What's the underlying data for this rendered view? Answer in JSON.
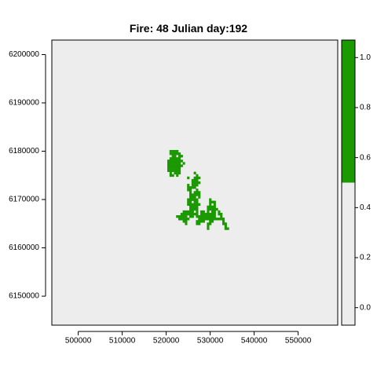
{
  "chart_data": {
    "type": "heatmap",
    "title": "Fire: 48    Julian day:192",
    "xlabel": "",
    "ylabel": "",
    "xlim": [
      494000,
      559000
    ],
    "ylim": [
      6144000,
      6203000
    ],
    "x_ticks": [
      500000,
      510000,
      520000,
      530000,
      540000,
      550000
    ],
    "y_ticks": [
      6150000,
      6160000,
      6170000,
      6180000,
      6190000,
      6200000
    ],
    "x_tick_labels": [
      "500000",
      "510000",
      "520000",
      "530000",
      "540000",
      "550000"
    ],
    "y_tick_labels": [
      "6150000",
      "6160000",
      "6170000",
      "6180000",
      "6190000",
      "6200000"
    ],
    "grid": false,
    "colors": {
      "background": "#ededed",
      "burned": "#1a9900"
    },
    "colorbar": {
      "range": [
        -0.07,
        1.07
      ],
      "threshold": 0.5,
      "ticks": [
        0.0,
        0.2,
        0.4,
        0.6,
        0.8,
        1.0
      ],
      "tick_labels": [
        "0.0",
        "0.2",
        "0.4",
        "0.6",
        "0.8",
        "1.0"
      ]
    },
    "cell_size": 500,
    "burned_cells": [
      [
        521000,
        6180000
      ],
      [
        521500,
        6180000
      ],
      [
        522000,
        6180000
      ],
      [
        522500,
        6180000
      ],
      [
        521000,
        6179500
      ],
      [
        521500,
        6179500
      ],
      [
        522000,
        6179500
      ],
      [
        522500,
        6179500
      ],
      [
        523000,
        6179500
      ],
      [
        521500,
        6179000
      ],
      [
        522000,
        6179000
      ],
      [
        523000,
        6179000
      ],
      [
        523500,
        6179000
      ],
      [
        521000,
        6178500
      ],
      [
        521500,
        6178500
      ],
      [
        522000,
        6178500
      ],
      [
        522500,
        6178500
      ],
      [
        523000,
        6178500
      ],
      [
        520500,
        6178000
      ],
      [
        521000,
        6178000
      ],
      [
        521500,
        6178000
      ],
      [
        522000,
        6178000
      ],
      [
        522500,
        6178000
      ],
      [
        523000,
        6178000
      ],
      [
        523500,
        6178000
      ],
      [
        520500,
        6177500
      ],
      [
        521000,
        6177500
      ],
      [
        521500,
        6177500
      ],
      [
        522000,
        6177500
      ],
      [
        522500,
        6177500
      ],
      [
        523000,
        6177500
      ],
      [
        524000,
        6177500
      ],
      [
        520500,
        6177000
      ],
      [
        521000,
        6177000
      ],
      [
        521500,
        6177000
      ],
      [
        522000,
        6177000
      ],
      [
        522500,
        6177000
      ],
      [
        523000,
        6177000
      ],
      [
        523500,
        6177000
      ],
      [
        520500,
        6176500
      ],
      [
        521000,
        6176500
      ],
      [
        521500,
        6176500
      ],
      [
        522000,
        6176500
      ],
      [
        522500,
        6176500
      ],
      [
        523000,
        6176500
      ],
      [
        520500,
        6176000
      ],
      [
        521000,
        6176000
      ],
      [
        521500,
        6176000
      ],
      [
        522000,
        6176000
      ],
      [
        522500,
        6176000
      ],
      [
        523000,
        6176000
      ],
      [
        521000,
        6175500
      ],
      [
        522000,
        6175500
      ],
      [
        522500,
        6175500
      ],
      [
        523000,
        6175500
      ],
      [
        521000,
        6175000
      ],
      [
        521500,
        6175000
      ],
      [
        522500,
        6175000
      ],
      [
        526500,
        6175500
      ],
      [
        527000,
        6175000
      ],
      [
        526500,
        6174500
      ],
      [
        527000,
        6174500
      ],
      [
        527500,
        6174500
      ],
      [
        525000,
        6174500
      ],
      [
        526000,
        6174000
      ],
      [
        526500,
        6174000
      ],
      [
        527000,
        6174000
      ],
      [
        526000,
        6173500
      ],
      [
        526500,
        6173500
      ],
      [
        527000,
        6173500
      ],
      [
        527500,
        6173500
      ],
      [
        525000,
        6173000
      ],
      [
        526000,
        6173000
      ],
      [
        526500,
        6173000
      ],
      [
        527000,
        6173000
      ],
      [
        525000,
        6172500
      ],
      [
        525500,
        6172500
      ],
      [
        526000,
        6172500
      ],
      [
        526500,
        6172500
      ],
      [
        525000,
        6172000
      ],
      [
        525500,
        6172000
      ],
      [
        527000,
        6172000
      ],
      [
        525500,
        6171500
      ],
      [
        526500,
        6171500
      ],
      [
        527000,
        6171500
      ],
      [
        527500,
        6171500
      ],
      [
        525500,
        6171000
      ],
      [
        526000,
        6171000
      ],
      [
        526500,
        6171000
      ],
      [
        527000,
        6171000
      ],
      [
        527500,
        6171000
      ],
      [
        525500,
        6170500
      ],
      [
        526000,
        6170500
      ],
      [
        526500,
        6170500
      ],
      [
        527500,
        6170500
      ],
      [
        525000,
        6170000
      ],
      [
        525500,
        6170000
      ],
      [
        526000,
        6170000
      ],
      [
        526500,
        6170000
      ],
      [
        527000,
        6170000
      ],
      [
        530000,
        6170000
      ],
      [
        525000,
        6169500
      ],
      [
        525500,
        6169500
      ],
      [
        526500,
        6169500
      ],
      [
        527000,
        6169500
      ],
      [
        530000,
        6169500
      ],
      [
        530500,
        6169500
      ],
      [
        531000,
        6169500
      ],
      [
        525000,
        6169000
      ],
      [
        525500,
        6169000
      ],
      [
        526000,
        6169000
      ],
      [
        526500,
        6169000
      ],
      [
        527000,
        6169000
      ],
      [
        527500,
        6169000
      ],
      [
        530000,
        6169000
      ],
      [
        531000,
        6169000
      ],
      [
        525500,
        6168500
      ],
      [
        526000,
        6168500
      ],
      [
        526500,
        6168500
      ],
      [
        527000,
        6168500
      ],
      [
        529500,
        6168500
      ],
      [
        530000,
        6168500
      ],
      [
        530500,
        6168500
      ],
      [
        531000,
        6168500
      ],
      [
        525500,
        6168000
      ],
      [
        526000,
        6168000
      ],
      [
        526500,
        6168000
      ],
      [
        527000,
        6168000
      ],
      [
        529500,
        6168000
      ],
      [
        530000,
        6168000
      ],
      [
        530500,
        6168000
      ],
      [
        531000,
        6168000
      ],
      [
        531500,
        6168000
      ],
      [
        524000,
        6167500
      ],
      [
        524500,
        6167500
      ],
      [
        525000,
        6167500
      ],
      [
        525500,
        6167500
      ],
      [
        526000,
        6167500
      ],
      [
        527000,
        6167500
      ],
      [
        528000,
        6167500
      ],
      [
        528500,
        6167500
      ],
      [
        529500,
        6167500
      ],
      [
        530500,
        6167500
      ],
      [
        531000,
        6167500
      ],
      [
        532000,
        6167500
      ],
      [
        523500,
        6167000
      ],
      [
        524000,
        6167000
      ],
      [
        524500,
        6167000
      ],
      [
        525000,
        6167000
      ],
      [
        525500,
        6167000
      ],
      [
        526000,
        6167000
      ],
      [
        526500,
        6167000
      ],
      [
        527000,
        6167000
      ],
      [
        528000,
        6167000
      ],
      [
        528500,
        6167000
      ],
      [
        529000,
        6167000
      ],
      [
        529500,
        6167000
      ],
      [
        530000,
        6167000
      ],
      [
        530500,
        6167000
      ],
      [
        531000,
        6167000
      ],
      [
        532000,
        6167000
      ],
      [
        532500,
        6167000
      ],
      [
        522500,
        6166500
      ],
      [
        523000,
        6166500
      ],
      [
        523500,
        6166500
      ],
      [
        524000,
        6166500
      ],
      [
        524500,
        6166500
      ],
      [
        525500,
        6166500
      ],
      [
        526000,
        6166500
      ],
      [
        527000,
        6166500
      ],
      [
        527500,
        6166500
      ],
      [
        528000,
        6166500
      ],
      [
        528500,
        6166500
      ],
      [
        529000,
        6166500
      ],
      [
        529500,
        6166500
      ],
      [
        530000,
        6166500
      ],
      [
        530500,
        6166500
      ],
      [
        531000,
        6166500
      ],
      [
        532500,
        6166500
      ],
      [
        523000,
        6166000
      ],
      [
        523500,
        6166000
      ],
      [
        524000,
        6166000
      ],
      [
        524500,
        6166000
      ],
      [
        525000,
        6166000
      ],
      [
        527500,
        6166000
      ],
      [
        528000,
        6166000
      ],
      [
        528500,
        6166000
      ],
      [
        529000,
        6166000
      ],
      [
        529500,
        6166000
      ],
      [
        530000,
        6166000
      ],
      [
        530500,
        6166000
      ],
      [
        531000,
        6166000
      ],
      [
        531500,
        6166000
      ],
      [
        532000,
        6166000
      ],
      [
        532500,
        6166000
      ],
      [
        533000,
        6166000
      ],
      [
        524000,
        6165500
      ],
      [
        524500,
        6165500
      ],
      [
        527000,
        6165500
      ],
      [
        527500,
        6165500
      ],
      [
        528000,
        6165500
      ],
      [
        528500,
        6165500
      ],
      [
        530000,
        6165500
      ],
      [
        530500,
        6165500
      ],
      [
        533000,
        6165500
      ],
      [
        524500,
        6165000
      ],
      [
        527000,
        6165000
      ],
      [
        527500,
        6165000
      ],
      [
        529500,
        6165000
      ],
      [
        530000,
        6165000
      ],
      [
        533000,
        6165000
      ],
      [
        533500,
        6165000
      ],
      [
        529500,
        6164500
      ],
      [
        533500,
        6164500
      ],
      [
        529500,
        6164000
      ],
      [
        533500,
        6164000
      ],
      [
        534000,
        6164000
      ]
    ]
  }
}
